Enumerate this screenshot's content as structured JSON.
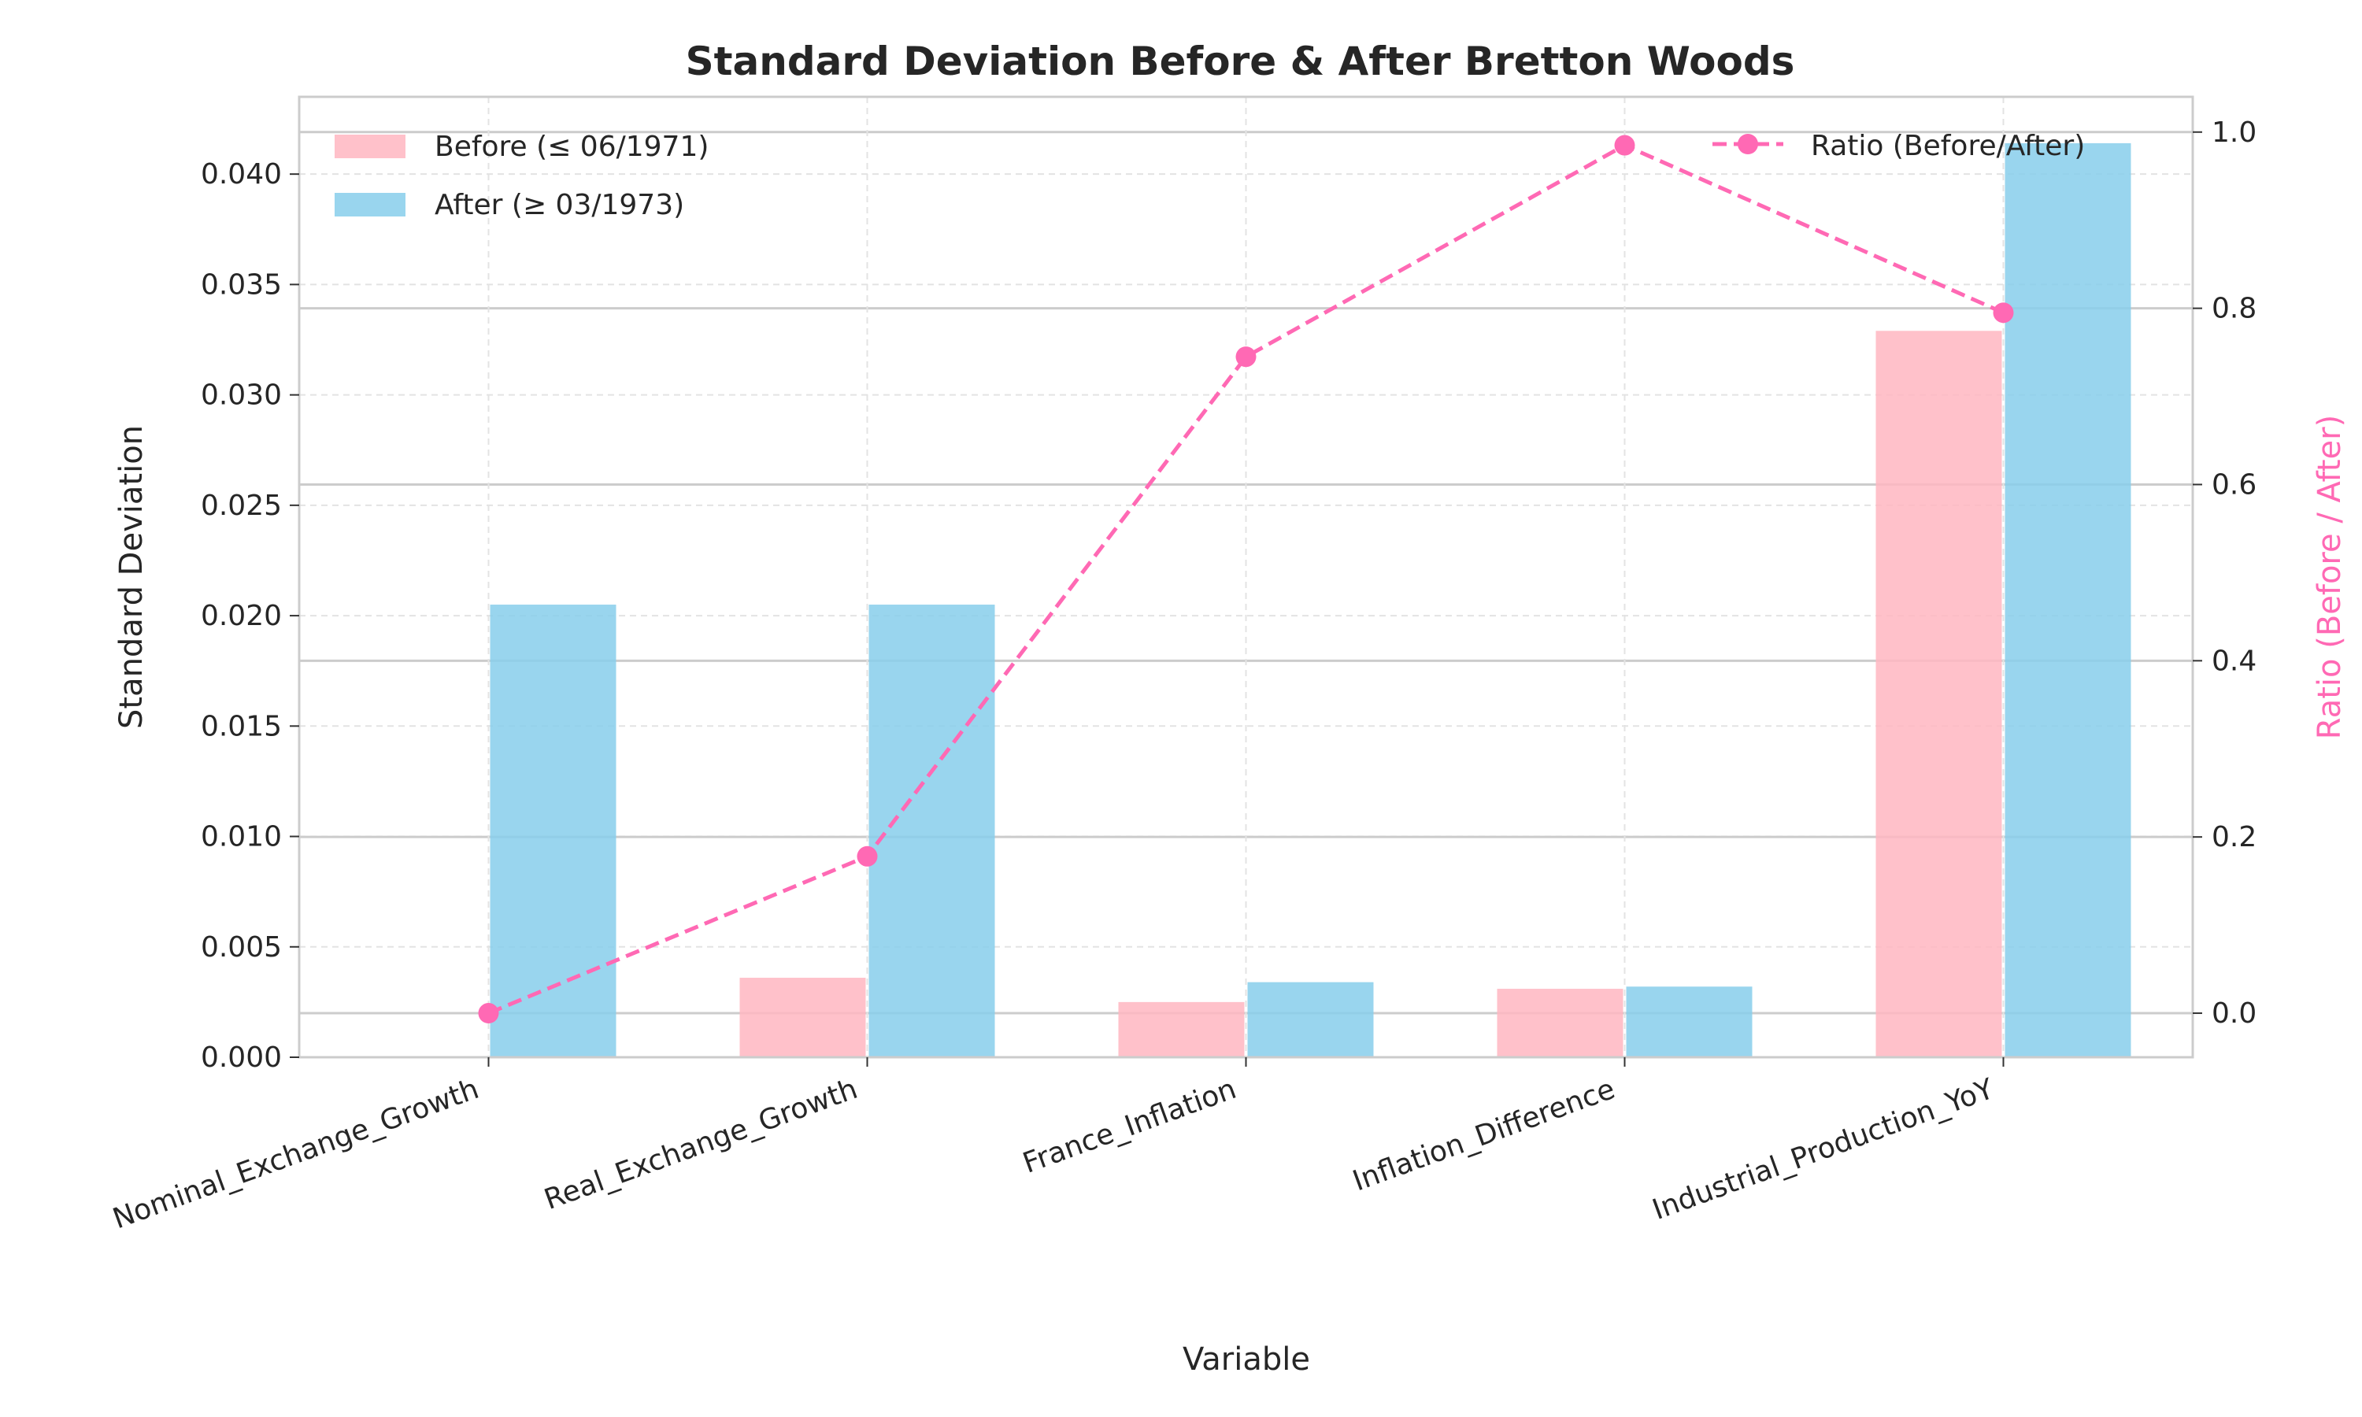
{
  "chart_data": {
    "type": "bar",
    "title": "Standard Deviation Before & After Bretton Woods",
    "xlabel": "Variable",
    "ylabel": "Standard Deviation",
    "y2label": "Ratio (Before / After)",
    "categories": [
      "Nominal_Exchange_Growth",
      "Real_Exchange_Growth",
      "France_Inflation",
      "Inflation_Difference",
      "Industrial_Production_YoY"
    ],
    "ylim": [
      0,
      0.0435
    ],
    "y2lim": [
      -0.05,
      1.04
    ],
    "yticks": [
      "0.000",
      "0.005",
      "0.010",
      "0.015",
      "0.020",
      "0.025",
      "0.030",
      "0.035",
      "0.040"
    ],
    "y2ticks": [
      "0.0",
      "0.2",
      "0.4",
      "0.6",
      "0.8",
      "1.0"
    ],
    "grid": true,
    "series": [
      {
        "name": "Before (≤ 06/1971)",
        "type": "bar",
        "axis": "left",
        "color": "#ffb6c1",
        "values": [
          0.0,
          0.0036,
          0.0025,
          0.0031,
          0.0329
        ]
      },
      {
        "name": "After (≥ 03/1973)",
        "type": "bar",
        "axis": "left",
        "color": "#87ceeb",
        "values": [
          0.0205,
          0.0205,
          0.0034,
          0.0032,
          0.0414
        ]
      },
      {
        "name": "Ratio (Before/After)",
        "type": "line",
        "axis": "right",
        "color": "#ff69b4",
        "line_style": "dashed",
        "marker": "circle",
        "values": [
          0.0,
          0.178,
          0.745,
          0.985,
          0.795
        ]
      }
    ],
    "legend_bars_position": "upper-left",
    "legend_line_position": "upper-right"
  }
}
